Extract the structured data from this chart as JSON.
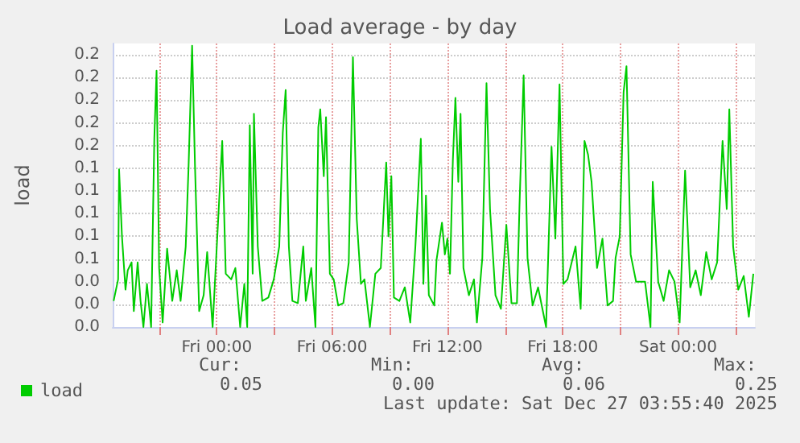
{
  "chart_data": {
    "type": "line",
    "title": "Load average - by day",
    "ylabel": "load",
    "x": [
      "2025-12-25T18:38",
      "2025-12-25T18:52",
      "2025-12-25T18:55",
      "2025-12-25T19:04",
      "2025-12-25T19:15",
      "2025-12-25T19:22",
      "2025-12-25T19:34",
      "2025-12-25T19:41",
      "2025-12-25T19:53",
      "2025-12-25T20:02",
      "2025-12-25T20:11",
      "2025-12-25T20:22",
      "2025-12-25T20:35",
      "2025-12-25T20:45",
      "2025-12-25T20:52",
      "2025-12-25T21:00",
      "2025-12-25T21:11",
      "2025-12-25T21:25",
      "2025-12-25T21:41",
      "2025-12-25T21:55",
      "2025-12-25T22:07",
      "2025-12-25T22:23",
      "2025-12-25T22:32",
      "2025-12-25T22:43",
      "2025-12-25T22:52",
      "2025-12-25T23:05",
      "2025-12-25T23:19",
      "2025-12-25T23:30",
      "2025-12-25T23:47",
      "2025-12-25T23:58",
      "2025-12-26T00:17",
      "2025-12-26T00:28",
      "2025-12-26T00:45",
      "2025-12-26T00:58",
      "2025-12-26T01:13",
      "2025-12-26T01:26",
      "2025-12-26T01:35",
      "2025-12-26T01:43",
      "2025-12-26T01:52",
      "2025-12-26T01:56",
      "2025-12-26T02:08",
      "2025-12-26T02:22",
      "2025-12-26T02:41",
      "2025-12-26T02:58",
      "2025-12-26T03:15",
      "2025-12-26T03:26",
      "2025-12-26T03:35",
      "2025-12-26T03:45",
      "2025-12-26T03:56",
      "2025-12-26T04:13",
      "2025-12-26T04:30",
      "2025-12-26T04:38",
      "2025-12-26T04:55",
      "2025-12-26T05:08",
      "2025-12-26T05:17",
      "2025-12-26T05:23",
      "2025-12-26T05:34",
      "2025-12-26T05:41",
      "2025-12-26T05:53",
      "2025-12-26T06:05",
      "2025-12-26T06:19",
      "2025-12-26T06:35",
      "2025-12-26T06:52",
      "2025-12-26T07:05",
      "2025-12-26T07:17",
      "2025-12-26T07:30",
      "2025-12-26T07:41",
      "2025-12-26T07:58",
      "2025-12-26T08:15",
      "2025-12-26T08:32",
      "2025-12-26T08:49",
      "2025-12-26T08:56",
      "2025-12-26T09:05",
      "2025-12-26T09:13",
      "2025-12-26T09:30",
      "2025-12-26T09:47",
      "2025-12-26T10:04",
      "2025-12-26T10:20",
      "2025-12-26T10:37",
      "2025-12-26T10:45",
      "2025-12-26T10:53",
      "2025-12-26T11:02",
      "2025-12-26T11:19",
      "2025-12-26T11:26",
      "2025-12-26T11:43",
      "2025-12-26T11:52",
      "2025-12-26T12:00",
      "2025-12-26T12:08",
      "2025-12-26T12:17",
      "2025-12-26T12:25",
      "2025-12-26T12:34",
      "2025-12-26T12:41",
      "2025-12-26T12:50",
      "2025-12-26T13:07",
      "2025-12-26T13:23",
      "2025-12-26T13:32",
      "2025-12-26T13:49",
      "2025-12-26T14:02",
      "2025-12-26T14:13",
      "2025-12-26T14:30",
      "2025-12-26T14:47",
      "2025-12-26T15:04",
      "2025-12-26T15:20",
      "2025-12-26T15:37",
      "2025-12-26T15:45",
      "2025-12-26T15:58",
      "2025-12-26T16:10",
      "2025-12-26T16:26",
      "2025-12-26T16:43",
      "2025-12-26T17:08",
      "2025-12-26T17:25",
      "2025-12-26T17:37",
      "2025-12-26T17:50",
      "2025-12-26T18:02",
      "2025-12-26T18:15",
      "2025-12-26T18:40",
      "2025-12-26T18:56",
      "2025-12-26T19:08",
      "2025-12-26T19:19",
      "2025-12-26T19:30",
      "2025-12-26T19:47",
      "2025-12-26T20:04",
      "2025-12-26T20:20",
      "2025-12-26T20:37",
      "2025-12-26T20:45",
      "2025-12-26T20:58",
      "2025-12-26T21:10",
      "2025-12-26T21:19",
      "2025-12-26T21:32",
      "2025-12-26T21:49",
      "2025-12-26T22:17",
      "2025-12-26T22:34",
      "2025-12-26T22:41",
      "2025-12-26T22:58",
      "2025-12-26T23:15",
      "2025-12-26T23:32",
      "2025-12-26T23:49",
      "2025-12-27T00:05",
      "2025-12-27T00:22",
      "2025-12-27T00:38",
      "2025-12-27T00:55",
      "2025-12-27T01:11",
      "2025-12-27T01:28",
      "2025-12-27T01:45",
      "2025-12-27T02:02",
      "2025-12-27T02:19",
      "2025-12-27T02:32",
      "2025-12-27T02:40",
      "2025-12-27T02:52",
      "2025-12-27T03:08",
      "2025-12-27T03:25",
      "2025-12-27T03:41",
      "2025-12-27T03:55"
    ],
    "series": [
      {
        "name": "load",
        "color": "#00cc00",
        "values": [
          0.023,
          0.042,
          0.139,
          0.08,
          0.033,
          0.05,
          0.057,
          0.014,
          0.057,
          0.023,
          0,
          0.038,
          0,
          0.166,
          0.226,
          0.052,
          0.004,
          0.069,
          0.023,
          0.05,
          0.023,
          0.071,
          0.142,
          0.248,
          0.142,
          0.014,
          0.028,
          0.066,
          0,
          0.06,
          0.164,
          0.047,
          0.042,
          0.052,
          0,
          0.038,
          0,
          0.178,
          0.047,
          0.188,
          0.071,
          0.023,
          0.026,
          0.042,
          0.071,
          0.171,
          0.209,
          0.071,
          0.023,
          0.021,
          0.071,
          0.023,
          0.052,
          0,
          0.176,
          0.192,
          0.133,
          0.185,
          0.047,
          0.042,
          0.019,
          0.021,
          0.057,
          0.238,
          0.095,
          0.038,
          0.042,
          0,
          0.047,
          0.052,
          0.145,
          0.08,
          0.133,
          0.026,
          0.023,
          0.035,
          0.004,
          0.071,
          0.166,
          0.038,
          0.116,
          0.028,
          0.019,
          0.059,
          0.092,
          0.064,
          0.078,
          0.047,
          0.147,
          0.202,
          0.128,
          0.188,
          0.052,
          0.028,
          0.042,
          0.004,
          0.061,
          0.215,
          0.104,
          0.028,
          0.016,
          0.09,
          0.021,
          0.021,
          0.107,
          0.222,
          0.061,
          0.019,
          0.035,
          0,
          0.159,
          0.078,
          0.214,
          0.038,
          0.042,
          0.071,
          0.016,
          0.164,
          0.152,
          0.128,
          0.052,
          0.078,
          0.019,
          0.023,
          0.061,
          0.08,
          0.207,
          0.23,
          0.064,
          0.04,
          0.04,
          0,
          0.128,
          0.04,
          0.023,
          0.05,
          0.04,
          0.004,
          0.138,
          0.035,
          0.05,
          0.028,
          0.066,
          0.042,
          0.057,
          0.164,
          0.104,
          0.192,
          0.071,
          0.033,
          0.045,
          0.009,
          0.047
        ]
      }
    ],
    "xlim": [
      "2025-12-25T18:35",
      "2025-12-27T04:00"
    ],
    "xticks": [
      {
        "value": "2025-12-25T21:00",
        "label": null
      },
      {
        "value": "2025-12-26T00:00",
        "label": "Fri 00:00"
      },
      {
        "value": "2025-12-26T03:00",
        "label": null
      },
      {
        "value": "2025-12-26T06:00",
        "label": "Fri 06:00"
      },
      {
        "value": "2025-12-26T09:00",
        "label": null
      },
      {
        "value": "2025-12-26T12:00",
        "label": "Fri 12:00"
      },
      {
        "value": "2025-12-26T15:00",
        "label": null
      },
      {
        "value": "2025-12-26T18:00",
        "label": "Fri 18:00"
      },
      {
        "value": "2025-12-26T21:00",
        "label": null
      },
      {
        "value": "2025-12-27T00:00",
        "label": "Sat 00:00"
      },
      {
        "value": "2025-12-27T03:00",
        "label": null
      }
    ],
    "ylim": [
      0,
      0.25
    ],
    "yticks": [
      {
        "value": 0,
        "label": "0.0"
      },
      {
        "value": 0.02,
        "label": "0.0"
      },
      {
        "value": 0.04,
        "label": "0.0"
      },
      {
        "value": 0.06,
        "label": "0.1"
      },
      {
        "value": 0.08,
        "label": "0.1"
      },
      {
        "value": 0.1,
        "label": "0.1"
      },
      {
        "value": 0.12,
        "label": "0.1"
      },
      {
        "value": 0.14,
        "label": "0.1"
      },
      {
        "value": 0.16,
        "label": "0.2"
      },
      {
        "value": 0.18,
        "label": "0.2"
      },
      {
        "value": 0.2,
        "label": "0.2"
      },
      {
        "value": 0.22,
        "label": "0.2"
      },
      {
        "value": 0.24,
        "label": "0.2"
      }
    ],
    "grid": true,
    "legend": "bottom left",
    "marker": "none",
    "line_style": "solid",
    "annotations": [
      "Cur:",
      "Min:",
      "Avg:",
      "Max:",
      "0.05",
      "0.00",
      "0.06",
      "0.25",
      "Last update: Sat Dec 27 03:55:40 2025"
    ]
  }
}
